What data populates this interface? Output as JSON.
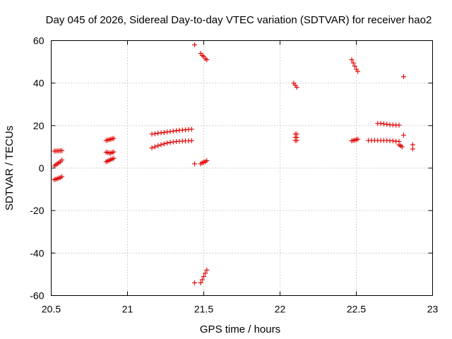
{
  "chart_data": {
    "type": "scatter",
    "title": "Day 045 of 2026, Sidereal Day-to-day VTEC variation (SDTVAR) for receiver hao2",
    "xlabel": "GPS time / hours",
    "ylabel": "SDTVAR / TECUs",
    "xlim": [
      20.5,
      23
    ],
    "ylim": [
      -60,
      60
    ],
    "x_ticks": [
      20.5,
      21,
      21.5,
      22,
      22.5,
      23
    ],
    "x_tick_labels": [
      "20.5",
      "21",
      "21.5",
      "22",
      "22.5",
      "23"
    ],
    "y_ticks": [
      -60,
      -40,
      -20,
      0,
      20,
      40,
      60
    ],
    "y_tick_labels": [
      "-60",
      "-40",
      "-20",
      "0",
      "20",
      "40",
      "60"
    ],
    "grid": true,
    "marker": "plus",
    "color": "#e00000",
    "series": [
      {
        "name": "SDTVAR",
        "points": [
          [
            20.52,
            8.0
          ],
          [
            20.53,
            8.0
          ],
          [
            20.54,
            8.1
          ],
          [
            20.55,
            8.1
          ],
          [
            20.56,
            8.2
          ],
          [
            20.57,
            8.2
          ],
          [
            20.52,
            1.0
          ],
          [
            20.53,
            1.5
          ],
          [
            20.54,
            2.0
          ],
          [
            20.55,
            2.5
          ],
          [
            20.56,
            3.0
          ],
          [
            20.57,
            3.8
          ],
          [
            20.52,
            -5.5
          ],
          [
            20.53,
            -5.2
          ],
          [
            20.54,
            -5.0
          ],
          [
            20.55,
            -4.7
          ],
          [
            20.56,
            -4.5
          ],
          [
            20.57,
            -4.0
          ],
          [
            20.86,
            13.0
          ],
          [
            20.87,
            13.2
          ],
          [
            20.88,
            13.4
          ],
          [
            20.89,
            13.6
          ],
          [
            20.9,
            13.8
          ],
          [
            20.91,
            14.0
          ],
          [
            20.86,
            7.5
          ],
          [
            20.87,
            7.3
          ],
          [
            20.88,
            7.2
          ],
          [
            20.89,
            7.0
          ],
          [
            20.9,
            7.4
          ],
          [
            20.91,
            7.6
          ],
          [
            20.86,
            3.0
          ],
          [
            20.87,
            3.3
          ],
          [
            20.88,
            3.6
          ],
          [
            20.89,
            4.0
          ],
          [
            20.9,
            4.3
          ],
          [
            20.91,
            4.6
          ],
          [
            21.16,
            16.0
          ],
          [
            21.18,
            16.2
          ],
          [
            21.2,
            16.4
          ],
          [
            21.22,
            16.6
          ],
          [
            21.24,
            16.8
          ],
          [
            21.26,
            17.0
          ],
          [
            21.28,
            17.2
          ],
          [
            21.3,
            17.4
          ],
          [
            21.32,
            17.6
          ],
          [
            21.34,
            17.8
          ],
          [
            21.36,
            17.9
          ],
          [
            21.38,
            18.0
          ],
          [
            21.4,
            18.2
          ],
          [
            21.42,
            18.3
          ],
          [
            21.16,
            9.5
          ],
          [
            21.18,
            10.0
          ],
          [
            21.2,
            10.5
          ],
          [
            21.22,
            11.0
          ],
          [
            21.24,
            11.4
          ],
          [
            21.26,
            11.8
          ],
          [
            21.28,
            12.1
          ],
          [
            21.3,
            12.3
          ],
          [
            21.32,
            12.5
          ],
          [
            21.34,
            12.6
          ],
          [
            21.36,
            12.7
          ],
          [
            21.38,
            12.8
          ],
          [
            21.4,
            12.8
          ],
          [
            21.42,
            12.9
          ],
          [
            21.44,
            58.0
          ],
          [
            21.44,
            2.0
          ],
          [
            21.44,
            -54.0
          ],
          [
            21.48,
            54.0
          ],
          [
            21.49,
            53.0
          ],
          [
            21.5,
            52.5
          ],
          [
            21.51,
            51.5
          ],
          [
            21.52,
            51.0
          ],
          [
            21.48,
            2.0
          ],
          [
            21.49,
            2.5
          ],
          [
            21.5,
            2.8
          ],
          [
            21.51,
            3.0
          ],
          [
            21.52,
            3.5
          ],
          [
            21.48,
            -54.0
          ],
          [
            21.49,
            -52.5
          ],
          [
            21.5,
            -51.0
          ],
          [
            21.51,
            -49.5
          ],
          [
            21.52,
            -48.0
          ],
          [
            22.09,
            40.0
          ],
          [
            22.1,
            39.0
          ],
          [
            22.11,
            38.0
          ],
          [
            22.1,
            16.0
          ],
          [
            22.11,
            16.0
          ],
          [
            22.1,
            14.5
          ],
          [
            22.11,
            14.5
          ],
          [
            22.1,
            13.0
          ],
          [
            22.11,
            13.0
          ],
          [
            22.47,
            51.0
          ],
          [
            22.48,
            49.5
          ],
          [
            22.49,
            48.0
          ],
          [
            22.5,
            46.5
          ],
          [
            22.51,
            45.5
          ],
          [
            22.47,
            12.8
          ],
          [
            22.48,
            13.0
          ],
          [
            22.49,
            13.2
          ],
          [
            22.5,
            13.4
          ],
          [
            22.51,
            13.6
          ],
          [
            22.64,
            21.0
          ],
          [
            22.66,
            21.0
          ],
          [
            22.68,
            20.8
          ],
          [
            22.7,
            20.6
          ],
          [
            22.72,
            20.4
          ],
          [
            22.74,
            20.3
          ],
          [
            22.76,
            20.2
          ],
          [
            22.78,
            20.2
          ],
          [
            22.58,
            13.0
          ],
          [
            22.6,
            13.0
          ],
          [
            22.62,
            13.0
          ],
          [
            22.64,
            13.0
          ],
          [
            22.66,
            13.0
          ],
          [
            22.68,
            13.0
          ],
          [
            22.7,
            13.0
          ],
          [
            22.72,
            12.9
          ],
          [
            22.74,
            12.8
          ],
          [
            22.76,
            12.6
          ],
          [
            22.78,
            12.5
          ],
          [
            22.78,
            11.0
          ],
          [
            22.79,
            10.5
          ],
          [
            22.8,
            10.0
          ],
          [
            22.81,
            43.0
          ],
          [
            22.81,
            15.5
          ],
          [
            22.87,
            11.0
          ],
          [
            22.87,
            9.0
          ]
        ]
      }
    ]
  }
}
